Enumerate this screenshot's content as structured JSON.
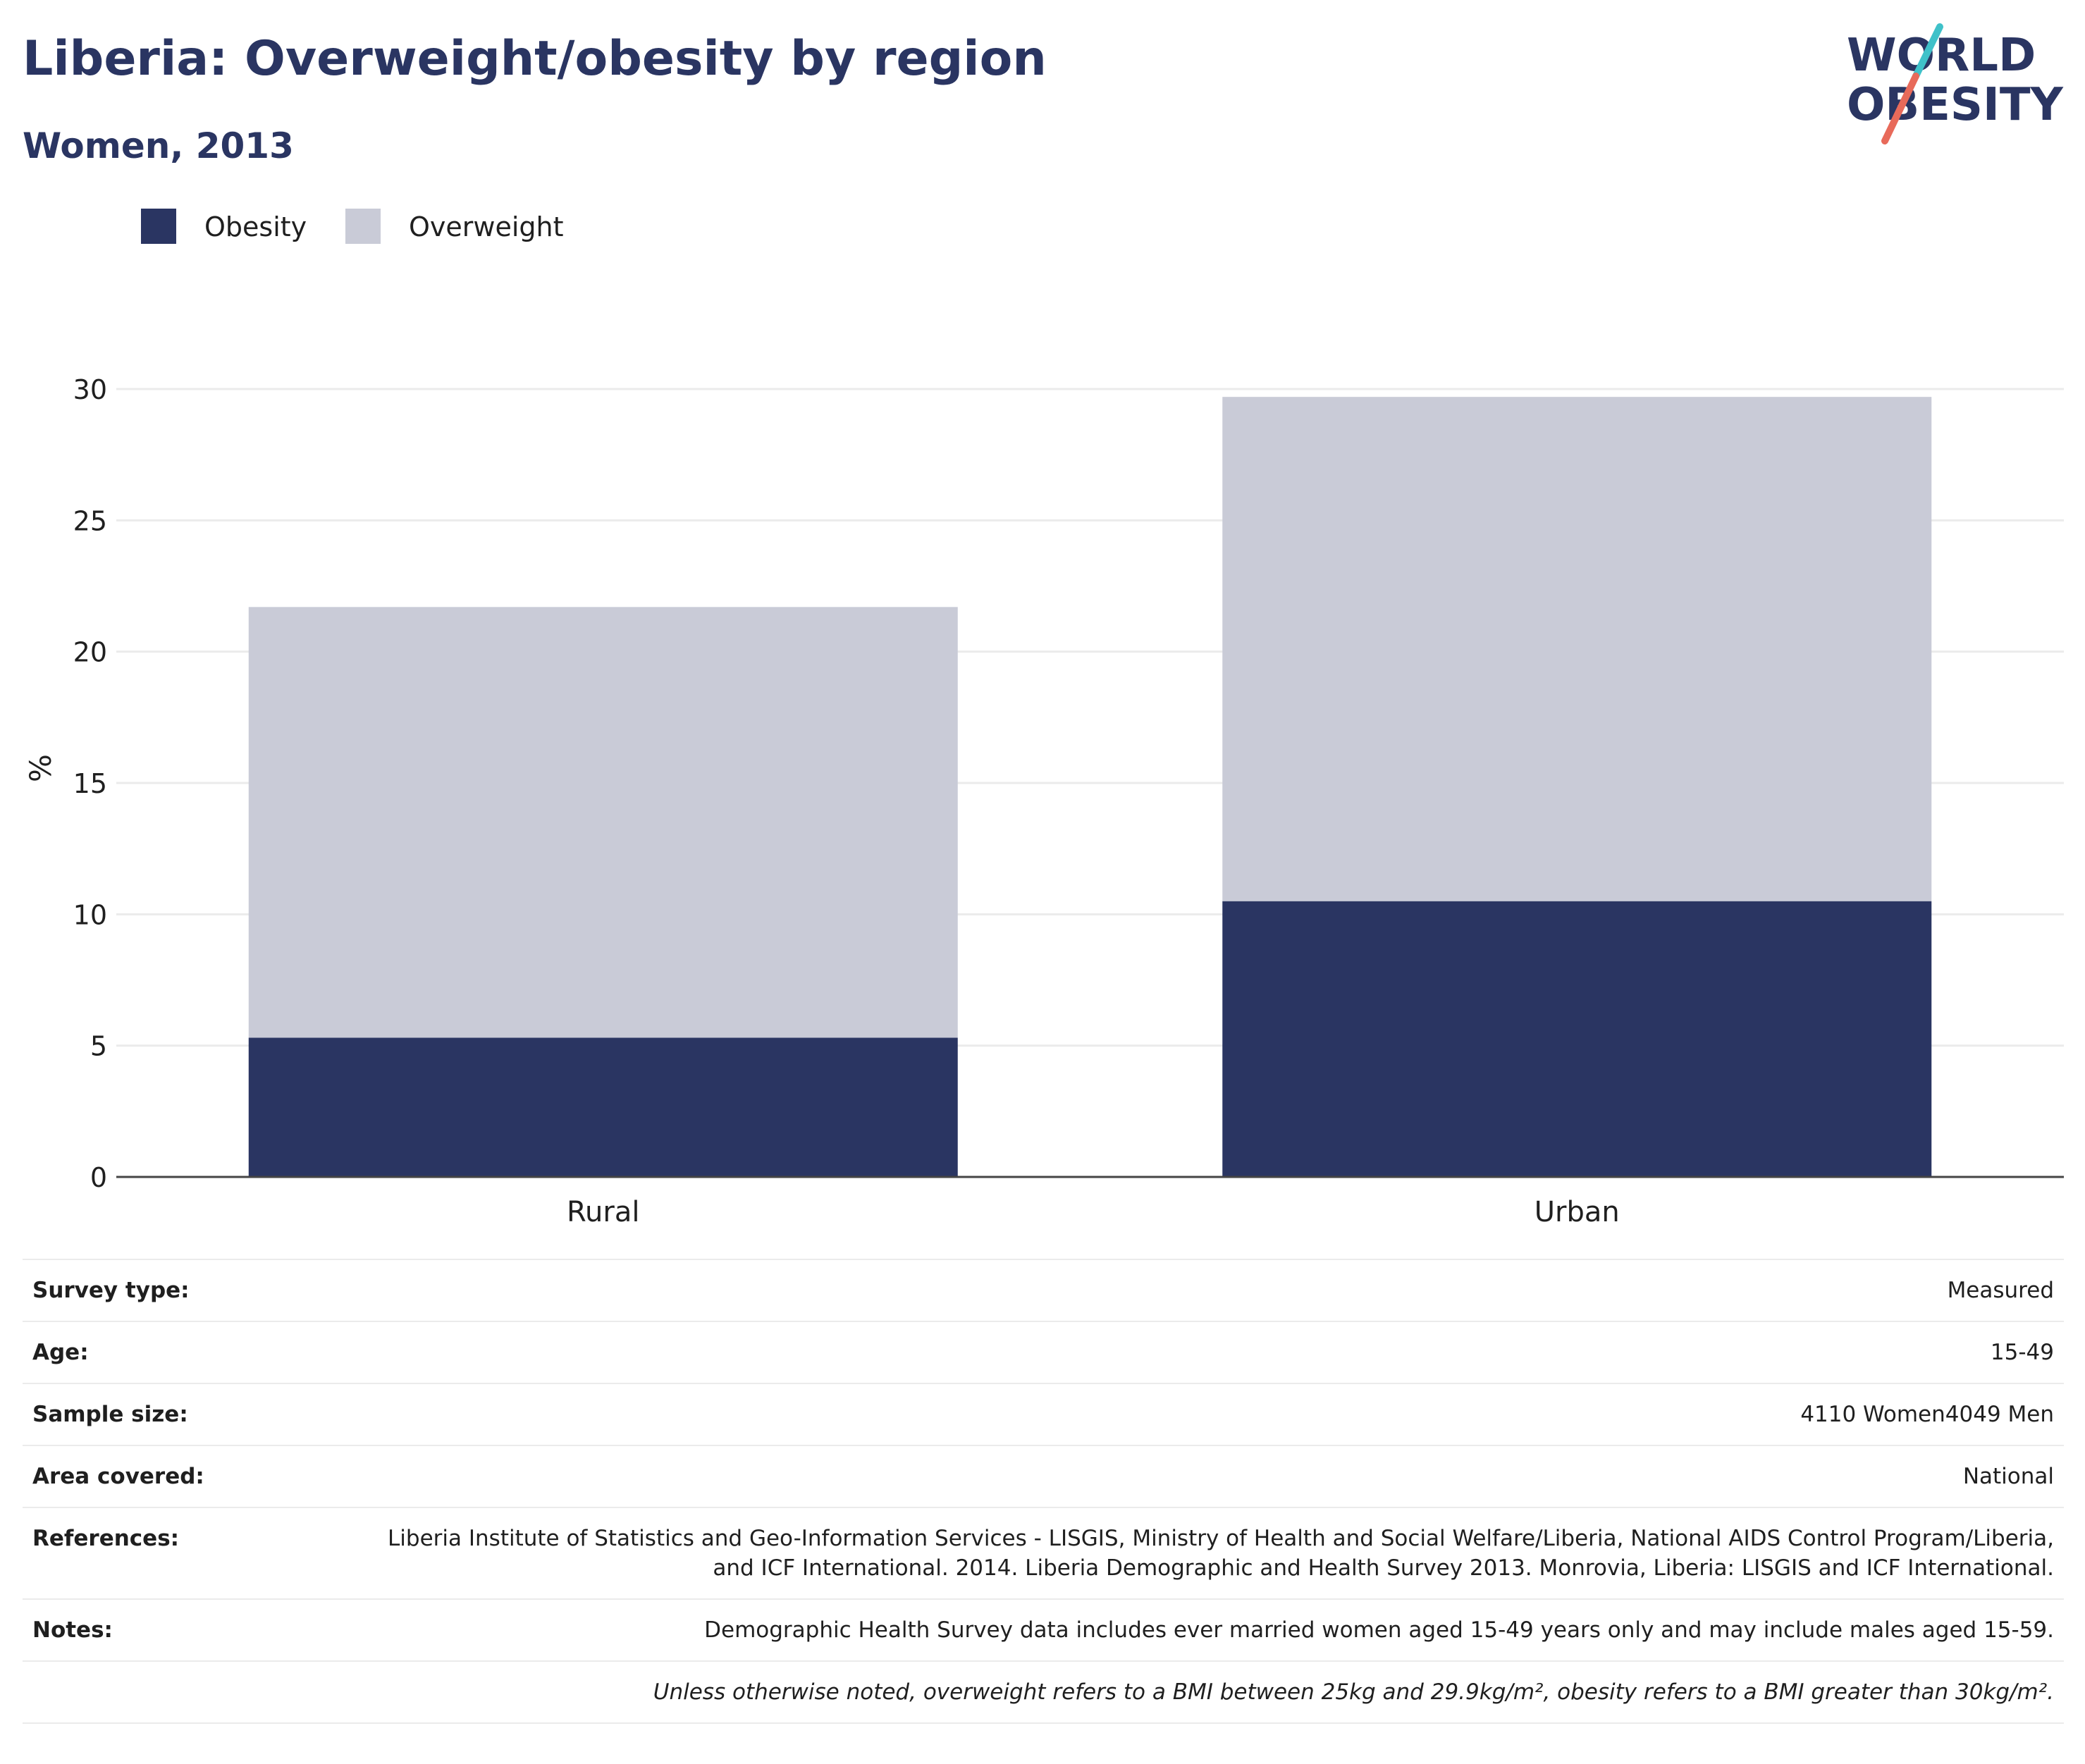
{
  "title": "Liberia: Overweight/obesity by region",
  "subtitle": "Women, 2013",
  "logo": {
    "line1": "WORLD",
    "line2": "OBESITY",
    "colors": {
      "navy": "#2a3562",
      "teal": "#3fc1c9",
      "coral": "#e86a5a"
    }
  },
  "chart_data": {
    "type": "bar",
    "stacked": true,
    "categories": [
      "Rural",
      "Urban"
    ],
    "series": [
      {
        "name": "Obesity",
        "values": [
          5.3,
          10.5
        ],
        "color": "#2a3562"
      },
      {
        "name": "Overweight",
        "values": [
          16.4,
          19.2
        ],
        "color": "#c9cbd7"
      }
    ],
    "ylabel": "%",
    "xlabel": "",
    "ylim": [
      0,
      30
    ],
    "yticks": [
      "0",
      "5",
      "10",
      "15",
      "20",
      "25",
      "30"
    ],
    "grid": true,
    "legend_position": "top-left"
  },
  "metadata": [
    {
      "key": "Survey type:",
      "value": "Measured"
    },
    {
      "key": "Age:",
      "value": "15-49"
    },
    {
      "key": "Sample size:",
      "value": "4110 Women4049 Men"
    },
    {
      "key": "Area covered:",
      "value": "National"
    },
    {
      "key": "References:",
      "value": "Liberia Institute of Statistics and Geo-Information Services - LISGIS, Ministry of Health and Social Welfare/Liberia, National AIDS Control Program/Liberia, and ICF International. 2014. Liberia Demographic and Health Survey 2013. Monrovia, Liberia: LISGIS and ICF International."
    },
    {
      "key": "Notes:",
      "value": "Demographic Health Survey data includes ever married women aged 15-49 years only and may include males aged 15-59."
    }
  ],
  "footnote": "Unless otherwise noted, overweight refers to a BMI between 25kg and 29.9kg/m², obesity refers to a BMI greater than 30kg/m²."
}
